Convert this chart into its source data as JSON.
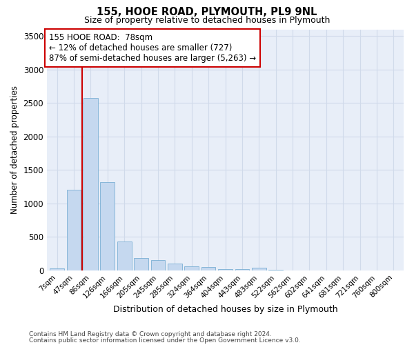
{
  "title1": "155, HOOE ROAD, PLYMOUTH, PL9 9NL",
  "title2": "Size of property relative to detached houses in Plymouth",
  "xlabel": "Distribution of detached houses by size in Plymouth",
  "ylabel": "Number of detached properties",
  "categories": [
    "7sqm",
    "47sqm",
    "86sqm",
    "126sqm",
    "166sqm",
    "205sqm",
    "245sqm",
    "285sqm",
    "324sqm",
    "364sqm",
    "404sqm",
    "443sqm",
    "483sqm",
    "522sqm",
    "562sqm",
    "602sqm",
    "641sqm",
    "681sqm",
    "721sqm",
    "760sqm",
    "800sqm"
  ],
  "values": [
    30,
    1200,
    2580,
    1320,
    430,
    190,
    155,
    100,
    65,
    50,
    20,
    20,
    40,
    5,
    3,
    2,
    1,
    1,
    1,
    1,
    1
  ],
  "bar_color": "#c5d8ef",
  "bar_edgecolor": "#7aafd4",
  "annotation_line1": "155 HOOE ROAD:  78sqm",
  "annotation_line2": "← 12% of detached houses are smaller (727)",
  "annotation_line3": "87% of semi-detached houses are larger (5,263) →",
  "annotation_box_facecolor": "#ffffff",
  "annotation_box_edgecolor": "#cc0000",
  "vline_color": "#cc0000",
  "vline_x": 1.5,
  "ylim": [
    0,
    3600
  ],
  "yticks": [
    0,
    500,
    1000,
    1500,
    2000,
    2500,
    3000,
    3500
  ],
  "grid_color": "#d0daea",
  "bg_color": "#e8eef8",
  "footer1": "Contains HM Land Registry data © Crown copyright and database right 2024.",
  "footer2": "Contains public sector information licensed under the Open Government Licence v3.0."
}
